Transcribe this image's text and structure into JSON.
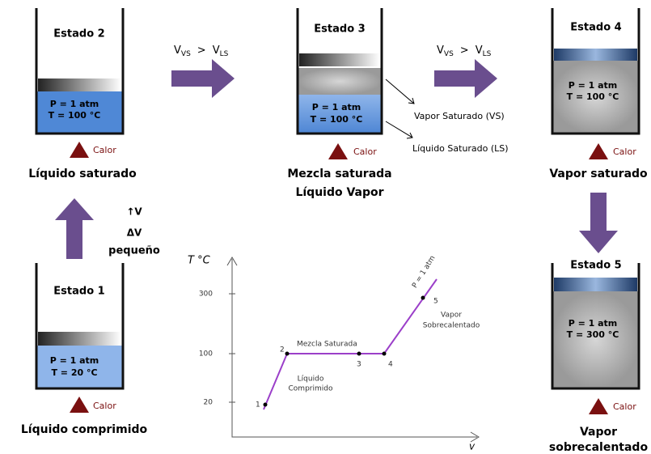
{
  "states": [
    {
      "title": "Estado 1",
      "pressure": "P = 1 atm",
      "temperature": "T = 20 °C",
      "heat": "Calor",
      "caption": [
        "Líquido comprimido"
      ]
    },
    {
      "title": "Estado 2",
      "pressure": "P = 1 atm",
      "temperature": "T = 100 °C",
      "heat": "Calor",
      "caption": [
        "Líquido saturado"
      ]
    },
    {
      "title": "Estado 3",
      "pressure": "P = 1 atm",
      "temperature": "T = 100 °C",
      "heat": "Calor",
      "caption": [
        "Mezcla saturada",
        "Líquido Vapor"
      ]
    },
    {
      "title": "Estado 4",
      "pressure": "P = 1 atm",
      "temperature": "T = 100 °C",
      "heat": "Calor",
      "caption": [
        "Vapor saturado"
      ]
    },
    {
      "title": "Estado 5",
      "pressure": "P = 1 atm",
      "temperature": "T = 300 °C",
      "heat": "Calor",
      "caption": [
        "Vapor",
        "sobrecalentado"
      ]
    }
  ],
  "transitions": [
    {
      "v1": "V",
      "sub1": "VS",
      "op": ">",
      "v2": "V",
      "sub2": "LS"
    },
    {
      "v1": "V",
      "sub1": "VS",
      "op": ">",
      "v2": "V",
      "sub2": "LS"
    }
  ],
  "phase_labels": [
    "Vapor Saturado (VS)",
    "Líquido Saturado (LS)"
  ],
  "volume_note": [
    "↑V",
    "ΔV",
    "pequeño"
  ],
  "graph": {
    "y_label": "T °C",
    "x_label": "v",
    "yticks": [
      "300",
      "100",
      "20"
    ],
    "points": [
      "1",
      "2",
      "3",
      "4",
      "5"
    ],
    "regions": [
      "Mezcla Saturada",
      "Líquido",
      "Comprimido",
      "Vapor",
      "Sobrecalentado",
      "P = 1 atm"
    ]
  }
}
